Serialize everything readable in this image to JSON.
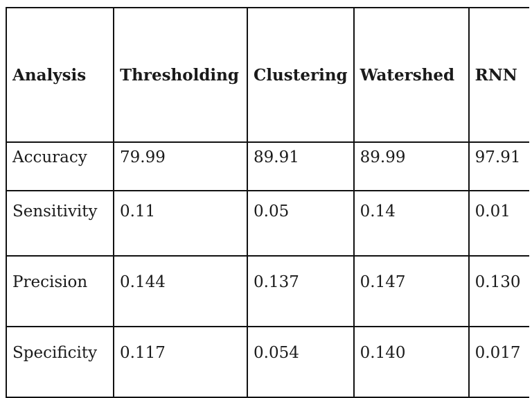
{
  "table": {
    "headers": [
      "Analysis",
      "Thresholding",
      "Clustering",
      "Watershed",
      "RNN"
    ],
    "rows": [
      [
        "Accuracy",
        "79.99",
        "89.91",
        "89.99",
        "97.91"
      ],
      [
        "Sensitivity",
        "0.11",
        "0.05",
        "0.14",
        "0.01"
      ],
      [
        "Precision",
        "0.144",
        "0.137",
        "0.147",
        "0.130"
      ],
      [
        "Specificity",
        "0.117",
        "0.054",
        "0.140",
        "0.017"
      ]
    ]
  }
}
